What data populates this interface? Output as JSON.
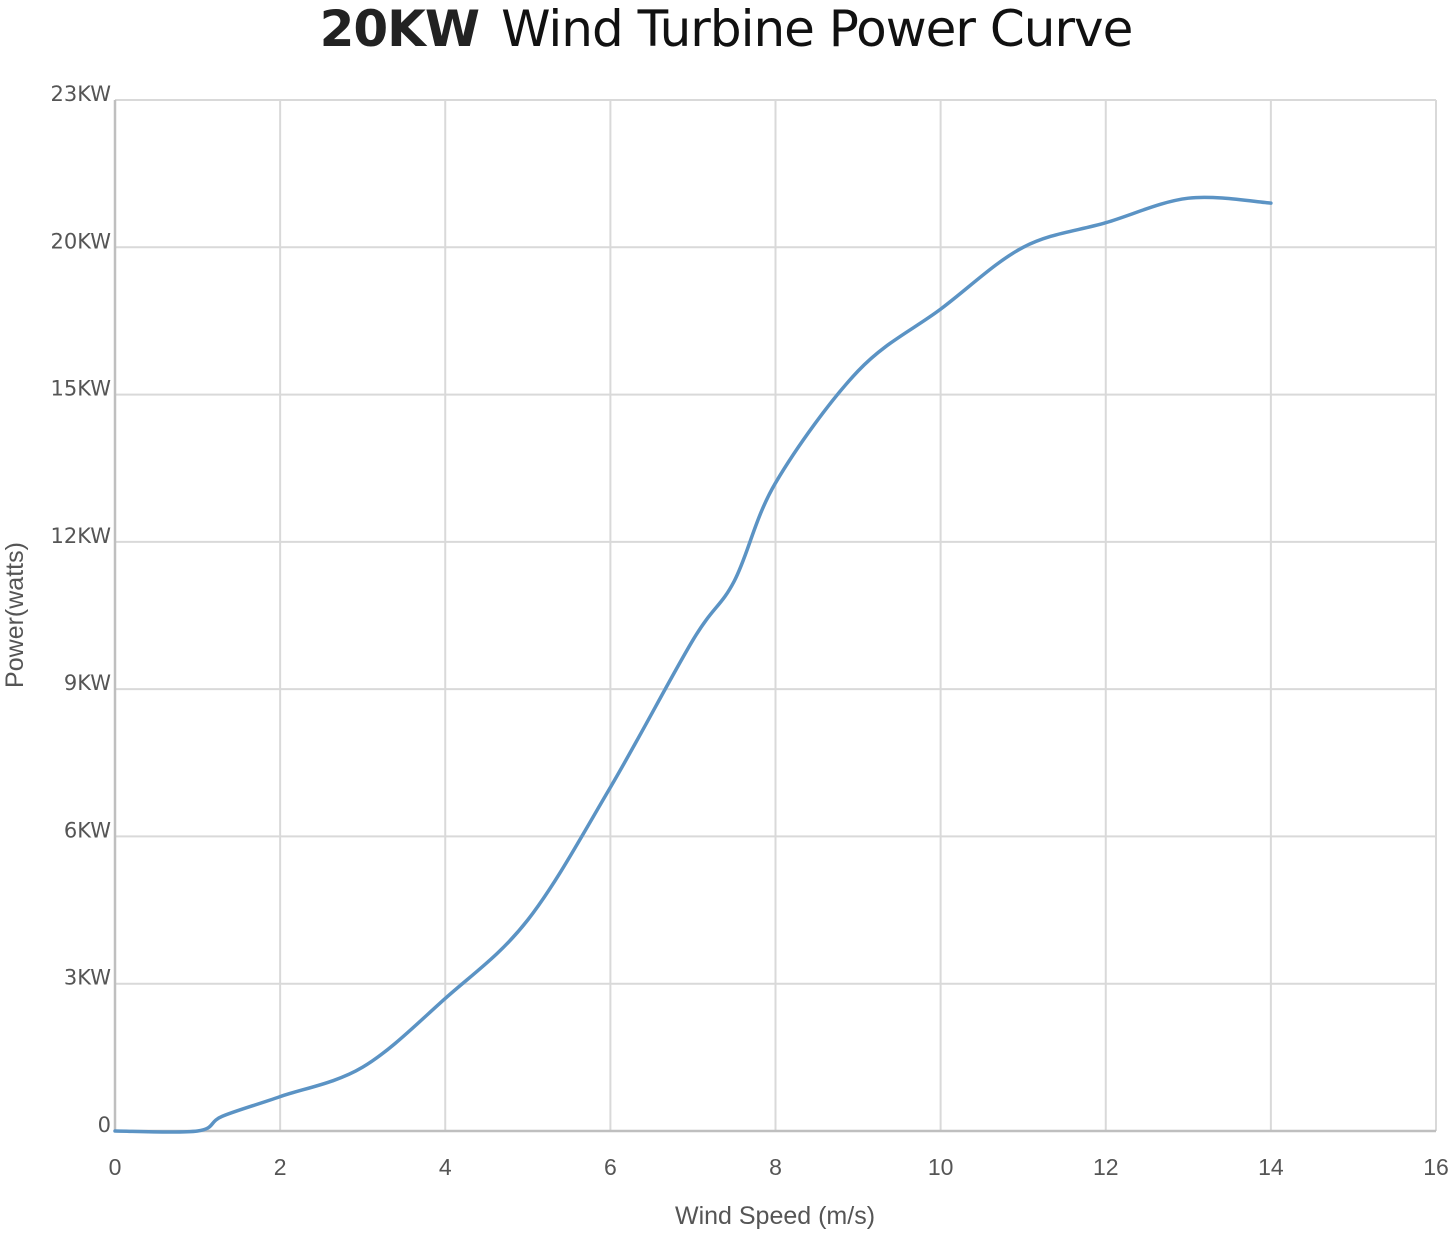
{
  "title": {
    "prefix": "20KW",
    "main": "Wind Turbine Power Curve"
  },
  "colors": {
    "line": "#5b93c4",
    "grid": "#d9d9d9",
    "axis": "#bfbfbf",
    "text": "#555555"
  },
  "chart_data": {
    "type": "line",
    "title": "20KW Wind Turbine Power Curve",
    "xlabel": "Wind Speed (m/s)",
    "ylabel": "Power(watts)",
    "xlim": [
      0,
      16
    ],
    "x_ticks": [
      "0",
      "2",
      "4",
      "6",
      "8",
      "10",
      "12",
      "14",
      "16"
    ],
    "y_ticks": [
      "0",
      "3KW",
      "6KW",
      "9KW",
      "12KW",
      "15KW",
      "20KW",
      "23KW"
    ],
    "grid": true,
    "legend": null,
    "series": [
      {
        "name": "Power",
        "x": [
          0,
          1,
          1.3,
          2,
          3,
          4,
          5,
          6,
          7,
          7.5,
          8,
          9,
          10,
          11,
          12,
          13,
          14
        ],
        "values": [
          0,
          0,
          0.3,
          0.7,
          1.3,
          2.7,
          4.3,
          7.0,
          10.0,
          11.2,
          13.2,
          15.8,
          17.9,
          20.0,
          20.5,
          21.0,
          20.9
        ],
        "unit": "KW"
      }
    ]
  }
}
